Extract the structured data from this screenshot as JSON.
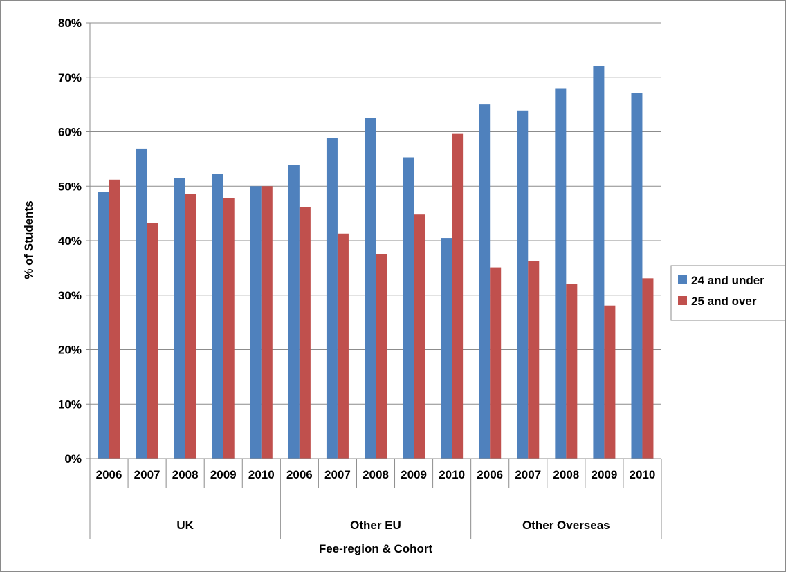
{
  "chart_data": {
    "type": "bar",
    "title": "",
    "xlabel": "Fee-region & Cohort",
    "ylabel": "% of Students",
    "ylim": [
      0,
      80
    ],
    "yticks": [
      "0%",
      "10%",
      "20%",
      "30%",
      "40%",
      "50%",
      "60%",
      "70%",
      "80%"
    ],
    "grid": true,
    "legend_position": "right",
    "groups": [
      {
        "name": "UK",
        "categories": [
          "2006",
          "2007",
          "2008",
          "2009",
          "2010"
        ]
      },
      {
        "name": "Other EU",
        "categories": [
          "2006",
          "2007",
          "2008",
          "2009",
          "2010"
        ]
      },
      {
        "name": "Other Overseas",
        "categories": [
          "2006",
          "2007",
          "2008",
          "2009",
          "2010"
        ]
      }
    ],
    "series": [
      {
        "name": "24 and under",
        "color": "#4F81BD",
        "values": [
          49.0,
          56.9,
          51.5,
          52.3,
          50.0,
          53.9,
          58.8,
          62.6,
          55.3,
          40.5,
          65.0,
          63.9,
          68.0,
          72.0,
          67.1
        ]
      },
      {
        "name": "25 and over",
        "color": "#C0504D",
        "values": [
          51.2,
          43.2,
          48.6,
          47.8,
          50.0,
          46.2,
          41.3,
          37.5,
          44.8,
          59.6,
          35.1,
          36.3,
          32.1,
          28.1,
          33.1
        ]
      }
    ]
  }
}
